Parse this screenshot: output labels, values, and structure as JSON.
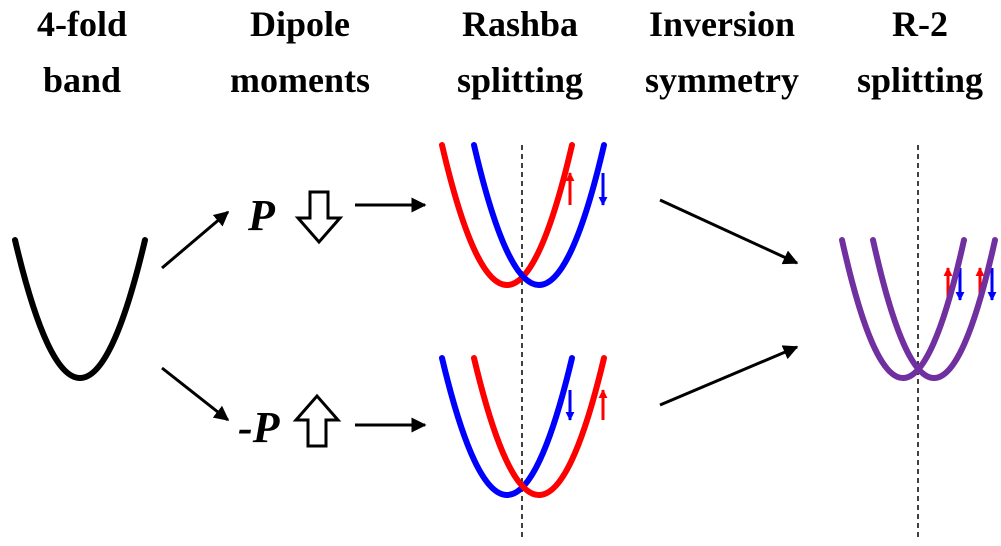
{
  "headers": [
    {
      "line1": "4-fold",
      "line2": "band"
    },
    {
      "line1": "Dipole",
      "line2": "moments"
    },
    {
      "line1": "Rashba",
      "line2": "splitting"
    },
    {
      "line1": "Inversion",
      "line2": "symmetry"
    },
    {
      "line1": "R-2",
      "line2": "splitting"
    }
  ],
  "labels": {
    "positive": "P",
    "negative": "-P"
  }
}
